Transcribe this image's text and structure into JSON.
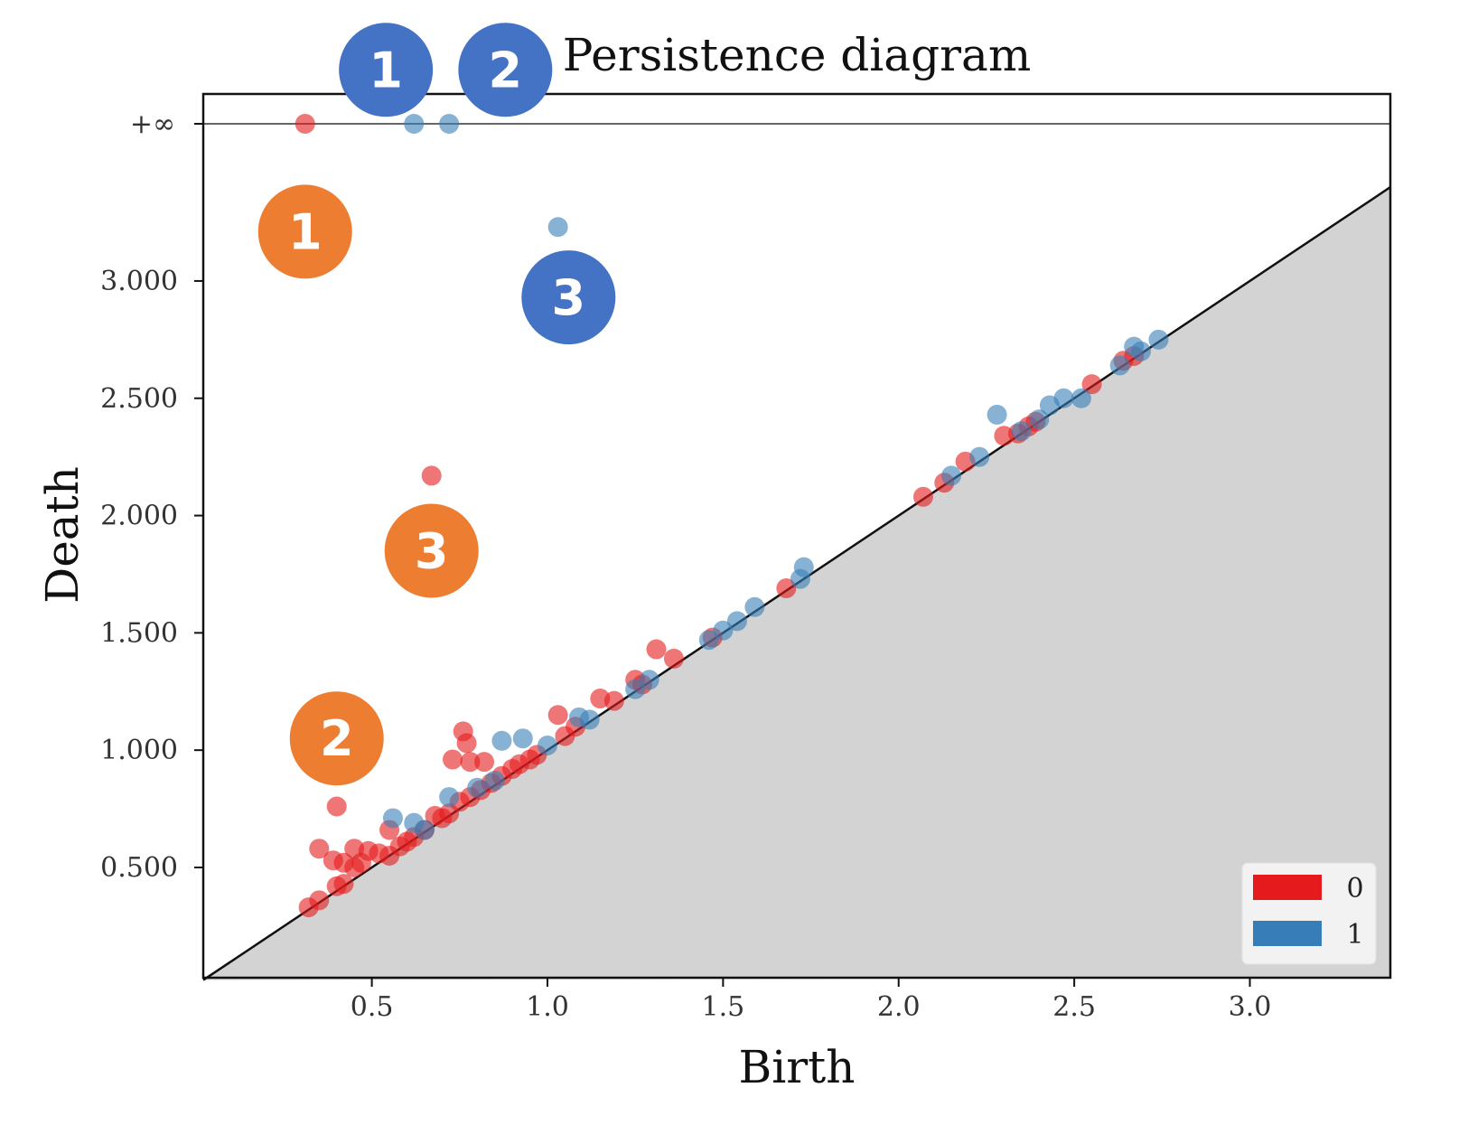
{
  "chart_data": {
    "type": "scatter",
    "title": "Persistence diagram",
    "xlabel": "Birth",
    "ylabel": "Death",
    "xlim": [
      0.02,
      3.4
    ],
    "ylim": [
      0.03,
      3.67
    ],
    "infinity_label": "+∞",
    "infinity_value": 3.67,
    "x_ticks": [
      0.5,
      1.0,
      1.5,
      2.0,
      2.5,
      3.0
    ],
    "x_tick_labels": [
      "0.5",
      "1.0",
      "1.5",
      "2.0",
      "2.5",
      "3.0"
    ],
    "y_ticks": [
      0.5,
      1.0,
      1.5,
      2.0,
      2.5,
      3.0
    ],
    "y_tick_labels": [
      "0.500",
      "1.000",
      "1.500",
      "2.000",
      "2.500",
      "3.000"
    ],
    "diagonal_fill": true,
    "legend": {
      "placement": "bottom-right",
      "entries": [
        "0",
        "1"
      ]
    },
    "series": [
      {
        "name": "0",
        "color": "#e41a1c",
        "points": [
          [
            0.31,
            3.67
          ],
          [
            0.67,
            2.17
          ],
          [
            0.4,
            0.76
          ],
          [
            0.76,
            1.08
          ],
          [
            0.77,
            1.03
          ],
          [
            0.73,
            0.96
          ],
          [
            0.78,
            0.95
          ],
          [
            0.82,
            0.95
          ],
          [
            0.35,
            0.58
          ],
          [
            0.39,
            0.53
          ],
          [
            0.45,
            0.58
          ],
          [
            0.49,
            0.57
          ],
          [
            0.42,
            0.52
          ],
          [
            0.45,
            0.5
          ],
          [
            0.47,
            0.52
          ],
          [
            0.32,
            0.33
          ],
          [
            0.35,
            0.36
          ],
          [
            0.4,
            0.42
          ],
          [
            0.42,
            0.43
          ],
          [
            0.52,
            0.56
          ],
          [
            0.55,
            0.55
          ],
          [
            0.58,
            0.59
          ],
          [
            0.6,
            0.61
          ],
          [
            0.62,
            0.63
          ],
          [
            0.55,
            0.66
          ],
          [
            0.65,
            0.66
          ],
          [
            0.68,
            0.72
          ],
          [
            0.7,
            0.71
          ],
          [
            0.72,
            0.73
          ],
          [
            0.75,
            0.78
          ],
          [
            0.78,
            0.8
          ],
          [
            0.81,
            0.83
          ],
          [
            0.84,
            0.86
          ],
          [
            0.87,
            0.89
          ],
          [
            0.9,
            0.92
          ],
          [
            0.92,
            0.94
          ],
          [
            0.95,
            0.96
          ],
          [
            0.97,
            0.98
          ],
          [
            1.03,
            1.15
          ],
          [
            1.05,
            1.06
          ],
          [
            1.08,
            1.1
          ],
          [
            1.15,
            1.22
          ],
          [
            1.19,
            1.21
          ],
          [
            1.25,
            1.3
          ],
          [
            1.27,
            1.28
          ],
          [
            1.31,
            1.43
          ],
          [
            1.36,
            1.39
          ],
          [
            1.47,
            1.48
          ],
          [
            1.68,
            1.69
          ],
          [
            2.07,
            2.08
          ],
          [
            2.13,
            2.14
          ],
          [
            2.19,
            2.23
          ],
          [
            2.3,
            2.34
          ],
          [
            2.34,
            2.35
          ],
          [
            2.37,
            2.38
          ],
          [
            2.39,
            2.4
          ],
          [
            2.55,
            2.56
          ],
          [
            2.64,
            2.66
          ],
          [
            2.67,
            2.68
          ]
        ]
      },
      {
        "name": "1",
        "color": "#377eb8",
        "points": [
          [
            0.62,
            3.67
          ],
          [
            0.72,
            3.67
          ],
          [
            1.03,
            3.23
          ],
          [
            0.87,
            1.04
          ],
          [
            0.93,
            1.05
          ],
          [
            0.56,
            0.71
          ],
          [
            0.62,
            0.69
          ],
          [
            0.65,
            0.66
          ],
          [
            0.72,
            0.8
          ],
          [
            0.8,
            0.84
          ],
          [
            0.85,
            0.87
          ],
          [
            1.0,
            1.02
          ],
          [
            1.09,
            1.14
          ],
          [
            1.12,
            1.13
          ],
          [
            1.25,
            1.26
          ],
          [
            1.29,
            1.3
          ],
          [
            1.46,
            1.47
          ],
          [
            1.5,
            1.51
          ],
          [
            1.54,
            1.55
          ],
          [
            1.59,
            1.61
          ],
          [
            1.73,
            1.78
          ],
          [
            1.72,
            1.73
          ],
          [
            2.15,
            2.17
          ],
          [
            2.23,
            2.25
          ],
          [
            2.28,
            2.43
          ],
          [
            2.35,
            2.36
          ],
          [
            2.4,
            2.41
          ],
          [
            2.43,
            2.47
          ],
          [
            2.47,
            2.5
          ],
          [
            2.52,
            2.5
          ],
          [
            2.63,
            2.64
          ],
          [
            2.67,
            2.72
          ],
          [
            2.69,
            2.7
          ],
          [
            2.74,
            2.75
          ]
        ]
      }
    ],
    "annotations": [
      {
        "label": "1",
        "color": "#4472c4",
        "x": 0.54,
        "y": 3.9
      },
      {
        "label": "2",
        "color": "#4472c4",
        "x": 0.88,
        "y": 3.9
      },
      {
        "label": "3",
        "color": "#4472c4",
        "x": 1.06,
        "y": 2.93
      },
      {
        "label": "1",
        "color": "#ed7d31",
        "x": 0.31,
        "y": 3.21
      },
      {
        "label": "3",
        "color": "#ed7d31",
        "x": 0.67,
        "y": 1.85
      },
      {
        "label": "2",
        "color": "#ed7d31",
        "x": 0.4,
        "y": 1.05
      }
    ]
  }
}
